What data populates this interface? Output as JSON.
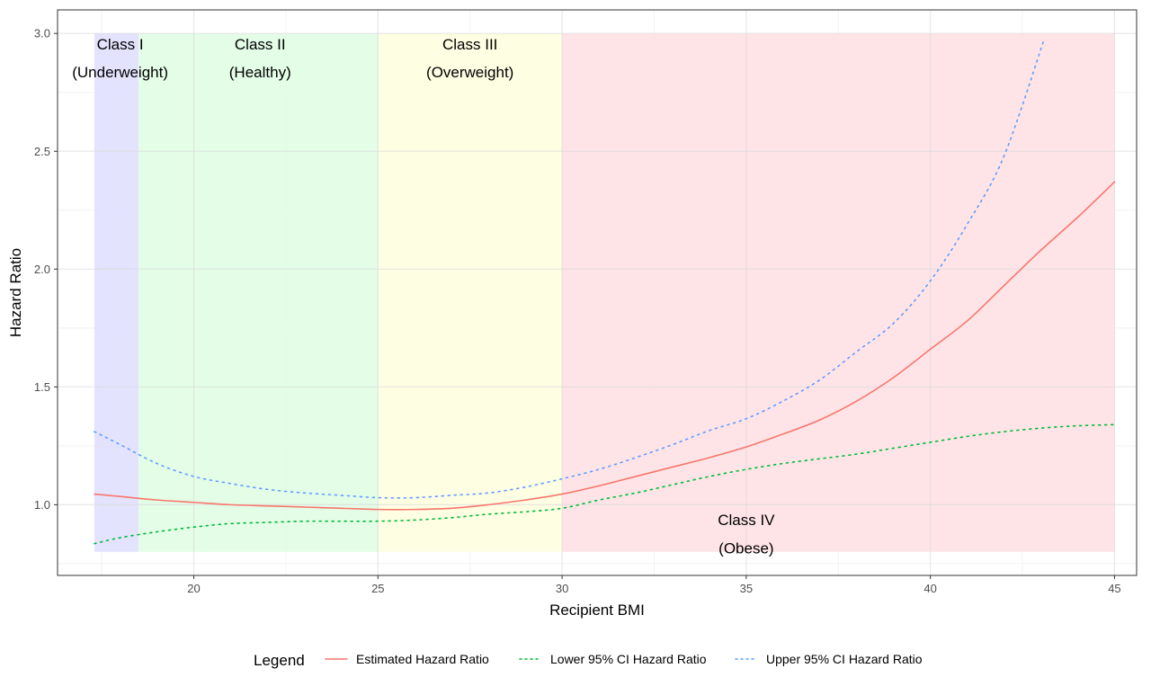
{
  "chart_data": {
    "type": "line",
    "xlabel": "Recipient BMI",
    "ylabel": "Hazard Ratio",
    "xlim": [
      16.3,
      45.6
    ],
    "ylim": [
      0.7,
      3.1
    ],
    "x_ticks": [
      20,
      25,
      30,
      35,
      40,
      45
    ],
    "y_ticks": [
      1.0,
      1.5,
      2.0,
      2.5,
      3.0
    ],
    "x_tick_labels": [
      "20",
      "25",
      "30",
      "35",
      "40",
      "45"
    ],
    "y_tick_labels": [
      "1.0",
      "1.5",
      "2.0",
      "2.5",
      "3.0"
    ],
    "grid": true,
    "regions": [
      {
        "x0": 17.3,
        "x1": 18.5,
        "y0": 0.8,
        "y1": 3.0,
        "color": "#e0e0fe",
        "label_line1": "Class I",
        "label_line2": "(Underweight)",
        "label_x": 18.0,
        "label_y1": 2.95,
        "label_y2": 2.83
      },
      {
        "x0": 18.5,
        "x1": 25.0,
        "y0": 0.8,
        "y1": 3.0,
        "color": "#e0fde4",
        "label_line1": "Class II",
        "label_line2": "(Healthy)",
        "label_x": 21.8,
        "label_y1": 2.95,
        "label_y2": 2.83
      },
      {
        "x0": 25.0,
        "x1": 30.0,
        "y0": 0.8,
        "y1": 3.0,
        "color": "#fefee0",
        "label_line1": "Class III",
        "label_line2": "(Overweight)",
        "label_x": 27.5,
        "label_y1": 2.95,
        "label_y2": 2.83
      },
      {
        "x0": 30.0,
        "x1": 45.0,
        "y0": 0.8,
        "y1": 3.0,
        "color": "#fee1e4",
        "label_line1": "Class IV",
        "label_line2": "(Obese)",
        "label_x": 35.0,
        "label_y1": 0.93,
        "label_y2": 0.81
      }
    ],
    "series": [
      {
        "name": "Estimated Hazard Ratio",
        "color": "#f8766d",
        "dash": "solid",
        "x": [
          17.3,
          18,
          19,
          20,
          21,
          22,
          23,
          24,
          25,
          26,
          27,
          28,
          29,
          30,
          31,
          32,
          33,
          34,
          35,
          36,
          37,
          38,
          39,
          40,
          41,
          42,
          43,
          44,
          45
        ],
        "y": [
          1.045,
          1.035,
          1.02,
          1.01,
          1.0,
          0.995,
          0.99,
          0.985,
          0.98,
          0.98,
          0.985,
          1.0,
          1.02,
          1.045,
          1.08,
          1.12,
          1.16,
          1.2,
          1.245,
          1.3,
          1.36,
          1.44,
          1.54,
          1.66,
          1.78,
          1.93,
          2.08,
          2.22,
          2.37
        ]
      },
      {
        "name": "Lower 95% CI Hazard Ratio",
        "color": "#00ba38",
        "dash": "dotted",
        "x": [
          17.3,
          18,
          19,
          20,
          21,
          22,
          23,
          24,
          25,
          26,
          27,
          28,
          29,
          30,
          31,
          32,
          33,
          34,
          35,
          36,
          37,
          38,
          39,
          40,
          41,
          42,
          43,
          44,
          45
        ],
        "y": [
          0.835,
          0.86,
          0.885,
          0.905,
          0.92,
          0.925,
          0.93,
          0.93,
          0.93,
          0.935,
          0.945,
          0.96,
          0.97,
          0.985,
          1.02,
          1.05,
          1.085,
          1.12,
          1.15,
          1.175,
          1.195,
          1.215,
          1.24,
          1.265,
          1.29,
          1.31,
          1.325,
          1.335,
          1.34
        ]
      },
      {
        "name": "Upper 95% CI Hazard Ratio",
        "color": "#619cff",
        "dash": "dotted",
        "x": [
          17.3,
          18,
          19,
          20,
          21,
          22,
          23,
          24,
          25,
          26,
          27,
          28,
          29,
          30,
          31,
          32,
          33,
          34,
          35,
          36,
          37,
          38,
          39,
          40,
          41,
          42,
          43.1
        ],
        "y": [
          1.31,
          1.255,
          1.175,
          1.12,
          1.09,
          1.065,
          1.05,
          1.04,
          1.03,
          1.03,
          1.04,
          1.05,
          1.075,
          1.11,
          1.15,
          1.2,
          1.255,
          1.315,
          1.365,
          1.44,
          1.53,
          1.65,
          1.77,
          1.95,
          2.19,
          2.48,
          2.98
        ]
      }
    ],
    "legend": {
      "title": "Legend",
      "position": "bottom",
      "items": [
        "Estimated Hazard Ratio",
        "Lower 95% CI Hazard Ratio",
        "Upper 95% CI Hazard Ratio"
      ]
    }
  }
}
